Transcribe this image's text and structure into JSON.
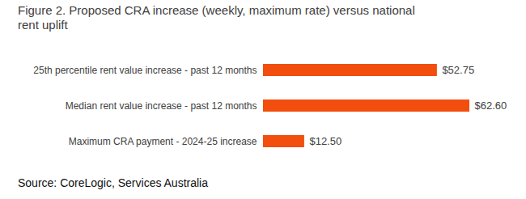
{
  "chart_data": {
    "type": "bar",
    "orientation": "horizontal",
    "title": "Figure 2. Proposed CRA increase (weekly, maximum rate) versus national rent uplift",
    "caption": "Source: CoreLogic, Services Australia",
    "categories": [
      "25th percentile rent value increase - past 12 months",
      "Median rent value increase - past 12 months",
      "Maximum CRA payment - 2024-25 increase"
    ],
    "values": [
      52.75,
      62.6,
      12.5
    ],
    "value_labels": [
      "$52.75",
      "$62.60",
      "$12.50"
    ],
    "color": "#f24e0e",
    "data_labels": true,
    "tick_labels": "y",
    "grid": false
  }
}
